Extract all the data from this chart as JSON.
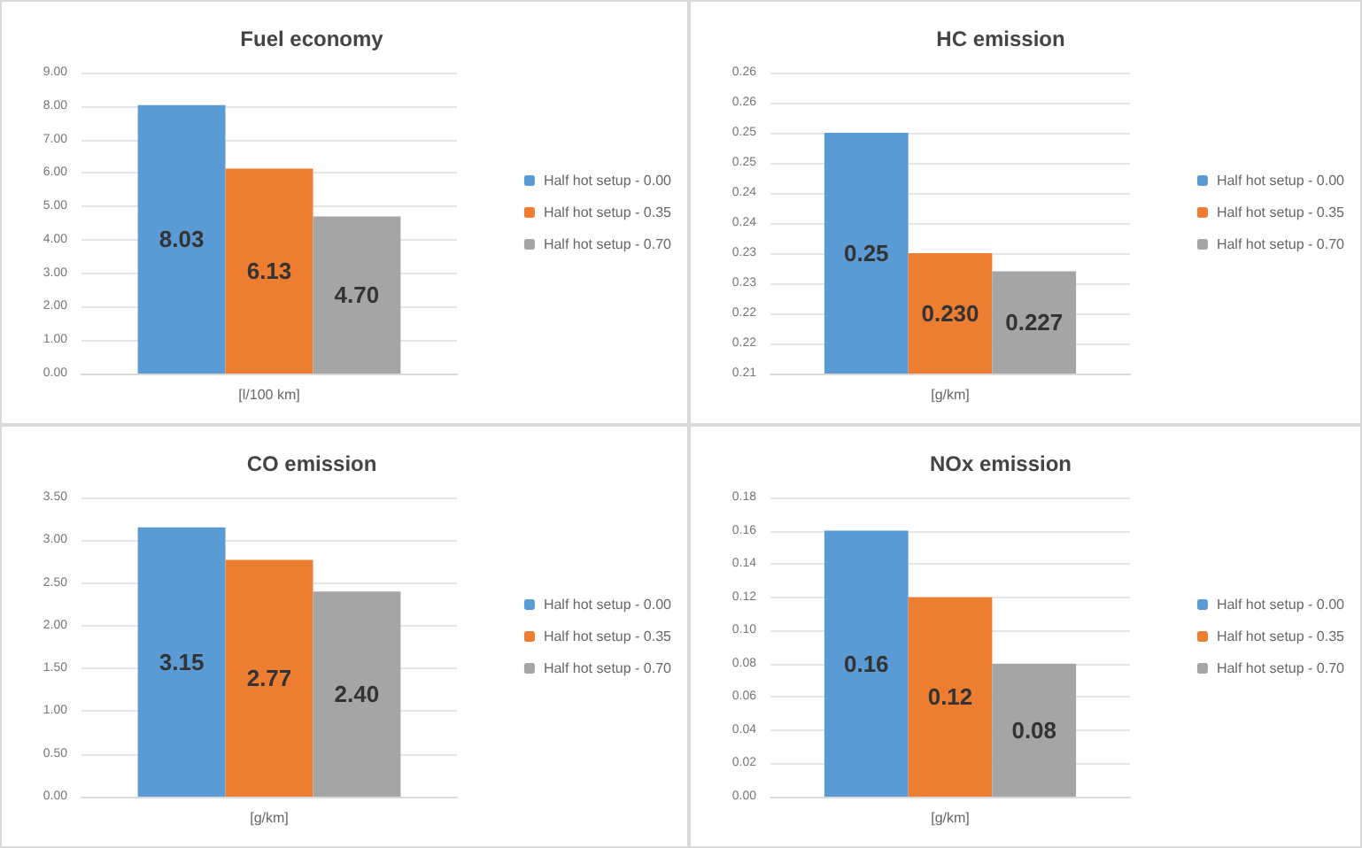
{
  "chart_data": [
    {
      "type": "bar",
      "title": "Fuel economy",
      "categories": [
        "[l/100 km]"
      ],
      "series": [
        {
          "name": "Half hot setup - 0.00",
          "color": "#5b9bd5",
          "values": [
            8.03
          ]
        },
        {
          "name": "Half hot setup - 0.35",
          "color": "#ed7d31",
          "values": [
            6.13
          ]
        },
        {
          "name": "Half hot setup - 0.70",
          "color": "#a5a5a5",
          "values": [
            4.7
          ]
        }
      ],
      "ylim": [
        0,
        9
      ],
      "yticks": [
        {
          "value": 0,
          "label": "0.00"
        },
        {
          "value": 1,
          "label": "1.00"
        },
        {
          "value": 2,
          "label": "2.00"
        },
        {
          "value": 3,
          "label": "3.00"
        },
        {
          "value": 4,
          "label": "4.00"
        },
        {
          "value": 5,
          "label": "5.00"
        },
        {
          "value": 6,
          "label": "6.00"
        },
        {
          "value": 7,
          "label": "7.00"
        },
        {
          "value": 8,
          "label": "8.00"
        },
        {
          "value": 9,
          "label": "9.00"
        }
      ],
      "value_labels": [
        "8.03",
        "6.13",
        "4.70"
      ],
      "grid": "y",
      "legend": "right"
    },
    {
      "type": "bar",
      "title": "HC emission",
      "categories": [
        "[g/km]"
      ],
      "series": [
        {
          "name": "Half hot setup - 0.00",
          "color": "#5b9bd5",
          "values": [
            0.25
          ]
        },
        {
          "name": "Half hot setup - 0.35",
          "color": "#ed7d31",
          "values": [
            0.23
          ]
        },
        {
          "name": "Half hot setup - 0.70",
          "color": "#a5a5a5",
          "values": [
            0.227
          ]
        }
      ],
      "ylim": [
        0.21,
        0.26
      ],
      "yticks": [
        {
          "value": 0.21,
          "label": "0.21"
        },
        {
          "value": 0.215,
          "label": "0.22"
        },
        {
          "value": 0.22,
          "label": "0.22"
        },
        {
          "value": 0.225,
          "label": "0.23"
        },
        {
          "value": 0.23,
          "label": "0.23"
        },
        {
          "value": 0.235,
          "label": "0.24"
        },
        {
          "value": 0.24,
          "label": "0.24"
        },
        {
          "value": 0.245,
          "label": "0.25"
        },
        {
          "value": 0.25,
          "label": "0.25"
        },
        {
          "value": 0.255,
          "label": "0.26"
        },
        {
          "value": 0.26,
          "label": "0.26"
        }
      ],
      "value_labels": [
        "0.25",
        "0.230",
        "0.227"
      ],
      "grid": "y",
      "legend": "right"
    },
    {
      "type": "bar",
      "title": "CO emission",
      "categories": [
        "[g/km]"
      ],
      "series": [
        {
          "name": "Half hot setup - 0.00",
          "color": "#5b9bd5",
          "values": [
            3.15
          ]
        },
        {
          "name": "Half hot setup - 0.35",
          "color": "#ed7d31",
          "values": [
            2.77
          ]
        },
        {
          "name": "Half hot setup - 0.70",
          "color": "#a5a5a5",
          "values": [
            2.4
          ]
        }
      ],
      "ylim": [
        0,
        3.5
      ],
      "yticks": [
        {
          "value": 0,
          "label": "0.00"
        },
        {
          "value": 0.5,
          "label": "0.50"
        },
        {
          "value": 1,
          "label": "1.00"
        },
        {
          "value": 1.5,
          "label": "1.50"
        },
        {
          "value": 2,
          "label": "2.00"
        },
        {
          "value": 2.5,
          "label": "2.50"
        },
        {
          "value": 3,
          "label": "3.00"
        },
        {
          "value": 3.5,
          "label": "3.50"
        }
      ],
      "value_labels": [
        "3.15",
        "2.77",
        "2.40"
      ],
      "grid": "y",
      "legend": "right"
    },
    {
      "type": "bar",
      "title": "NOx emission",
      "categories": [
        "[g/km]"
      ],
      "series": [
        {
          "name": "Half hot setup - 0.00",
          "color": "#5b9bd5",
          "values": [
            0.16
          ]
        },
        {
          "name": "Half hot setup - 0.35",
          "color": "#ed7d31",
          "values": [
            0.12
          ]
        },
        {
          "name": "Half hot setup - 0.70",
          "color": "#a5a5a5",
          "values": [
            0.08
          ]
        }
      ],
      "ylim": [
        0,
        0.18
      ],
      "yticks": [
        {
          "value": 0,
          "label": "0.00"
        },
        {
          "value": 0.02,
          "label": "0.02"
        },
        {
          "value": 0.04,
          "label": "0.04"
        },
        {
          "value": 0.06,
          "label": "0.06"
        },
        {
          "value": 0.08,
          "label": "0.08"
        },
        {
          "value": 0.1,
          "label": "0.10"
        },
        {
          "value": 0.12,
          "label": "0.12"
        },
        {
          "value": 0.14,
          "label": "0.14"
        },
        {
          "value": 0.16,
          "label": "0.16"
        },
        {
          "value": 0.18,
          "label": "0.18"
        }
      ],
      "value_labels": [
        "0.16",
        "0.12",
        "0.08"
      ],
      "grid": "y",
      "legend": "right"
    }
  ]
}
